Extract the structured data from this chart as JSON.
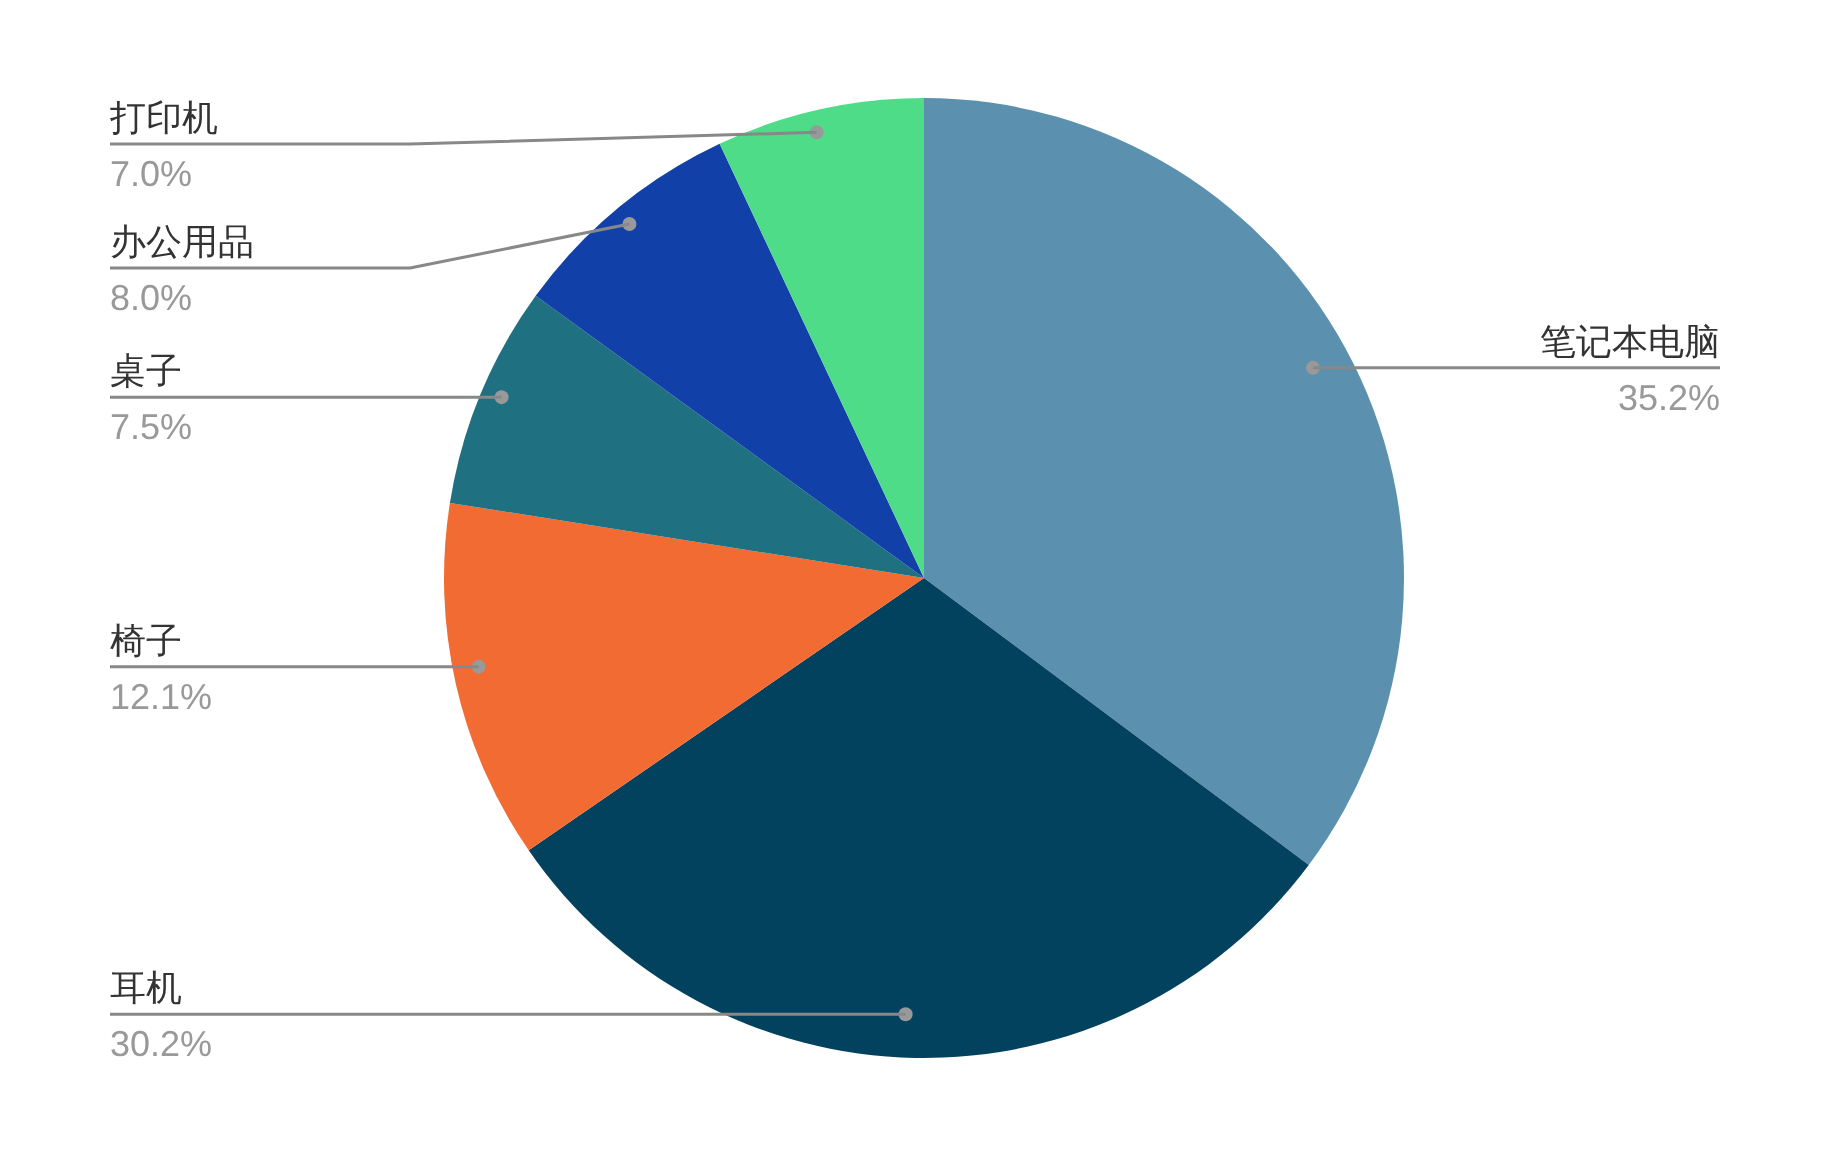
{
  "chart_data": {
    "type": "pie",
    "categories": [
      "笔记本电脑",
      "耳机",
      "椅子",
      "桌子",
      "办公用品",
      "打印机"
    ],
    "values": [
      35.2,
      30.2,
      12.1,
      7.5,
      8.0,
      7.0
    ],
    "value_labels": [
      "35.2%",
      "30.2%",
      "12.1%",
      "7.5%",
      "8.0%",
      "7.0%"
    ],
    "colors": [
      "#5b91ae",
      "#03425e",
      "#f26b32",
      "#1f7080",
      "#1141a8",
      "#4fdc88"
    ],
    "legend": false
  }
}
